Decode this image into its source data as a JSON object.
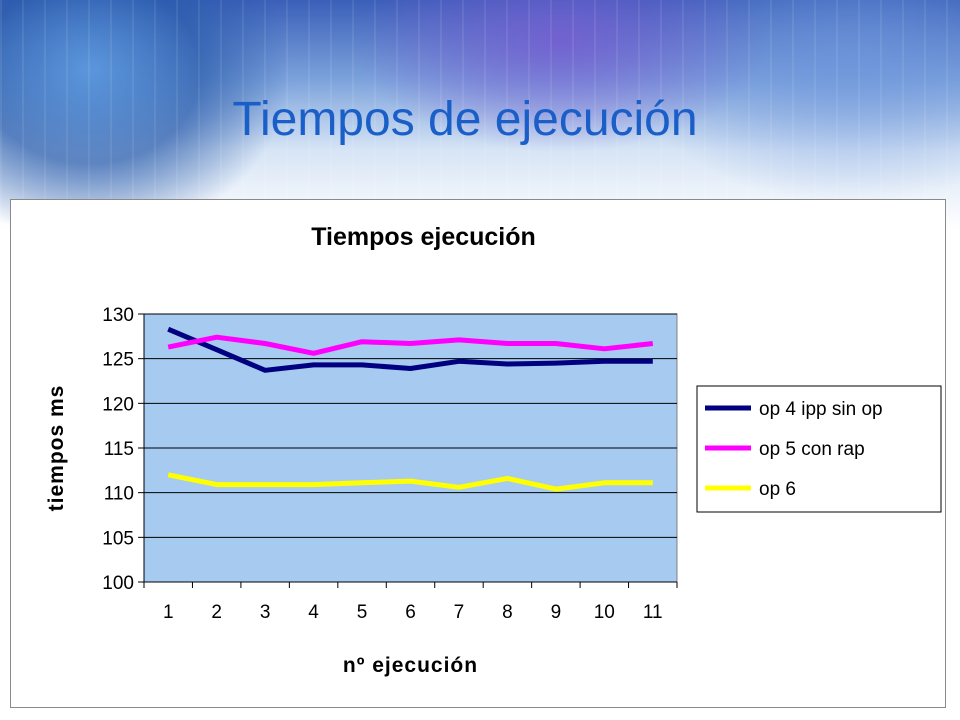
{
  "slide": {
    "title": "Tiempos de ejecución"
  },
  "chart_data": {
    "type": "line",
    "title": "Tiempos ejecución",
    "xlabel": "nº ejecución",
    "ylabel": "tiempos ms",
    "categories": [
      "1",
      "2",
      "3",
      "4",
      "5",
      "6",
      "7",
      "8",
      "9",
      "10",
      "11"
    ],
    "ylim": [
      100,
      130
    ],
    "yticks": [
      100,
      105,
      110,
      115,
      120,
      125,
      130
    ],
    "grid": true,
    "plot_background": "#a6caf0",
    "legend_position": "right",
    "series": [
      {
        "name": "op 4  ipp sin op",
        "color": "#000080",
        "values": [
          128.3,
          126.0,
          123.7,
          124.3,
          124.3,
          123.9,
          124.7,
          124.4,
          124.5,
          124.7,
          124.7
        ]
      },
      {
        "name": "op 5 con rap",
        "color": "#ff00ff",
        "values": [
          126.3,
          127.4,
          126.7,
          125.6,
          126.9,
          126.7,
          127.1,
          126.7,
          126.7,
          126.1,
          126.7
        ]
      },
      {
        "name": "op 6",
        "color": "#ffff00",
        "values": [
          112.0,
          110.9,
          110.9,
          110.9,
          111.1,
          111.3,
          110.6,
          111.6,
          110.4,
          111.1,
          111.1
        ]
      }
    ]
  }
}
